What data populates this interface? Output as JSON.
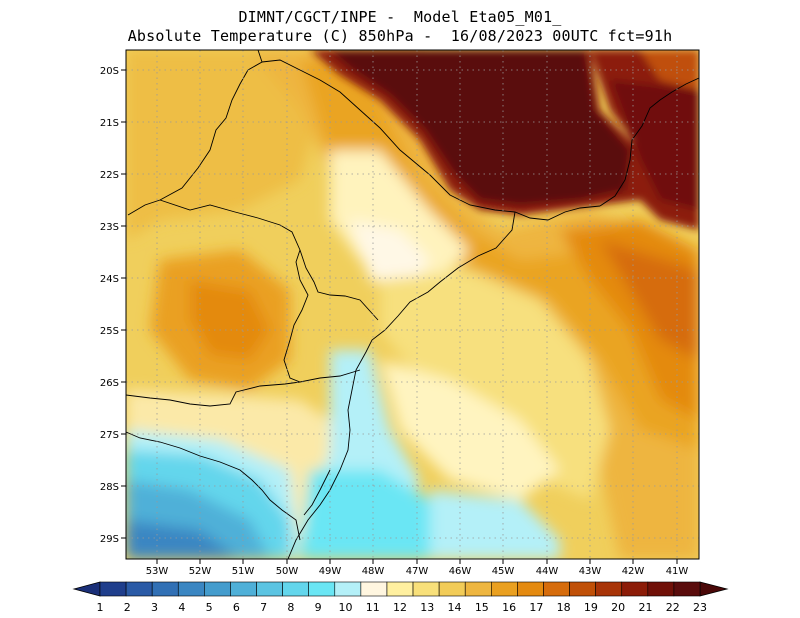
{
  "title": {
    "line1": "DIMNT/CGCT/INPE -  Model Eta05_M01_",
    "line2": "Absolute Temperature (C) 850hPa -  16/08/2023 00UTC fct=91h"
  },
  "map": {
    "lon_range": [
      -53.75,
      -40.5
    ],
    "lat_range": [
      -29.4,
      -19.5
    ],
    "lat_labels": [
      "20S",
      "21S",
      "22S",
      "23S",
      "24S",
      "25S",
      "26S",
      "27S",
      "28S",
      "29S"
    ],
    "lon_labels": [
      "53W",
      "52W",
      "51W",
      "50W",
      "49W",
      "48W",
      "47W",
      "46W",
      "45W",
      "44W",
      "43W",
      "42W",
      "41W"
    ],
    "gridlines": "dotted"
  },
  "colorbar": {
    "labels": [
      "1",
      "2",
      "3",
      "4",
      "5",
      "6",
      "7",
      "8",
      "9",
      "10",
      "11",
      "12",
      "13",
      "14",
      "15",
      "16",
      "17",
      "18",
      "19",
      "20",
      "21",
      "22",
      "23"
    ],
    "colors": [
      "#1f3e8c",
      "#2a5aa6",
      "#3170b5",
      "#3a86c2",
      "#449ccd",
      "#4fb0d8",
      "#5bc4e2",
      "#63d6ec",
      "#6ae6f4",
      "#b4f0f8",
      "#fff6e0",
      "#fff0a0",
      "#f8e07a",
      "#f2cc58",
      "#eeb640",
      "#eaa020",
      "#e48a10",
      "#d66c0c",
      "#c05008",
      "#a83408",
      "#8c1c08",
      "#701008",
      "#5a0c0c"
    ]
  }
}
